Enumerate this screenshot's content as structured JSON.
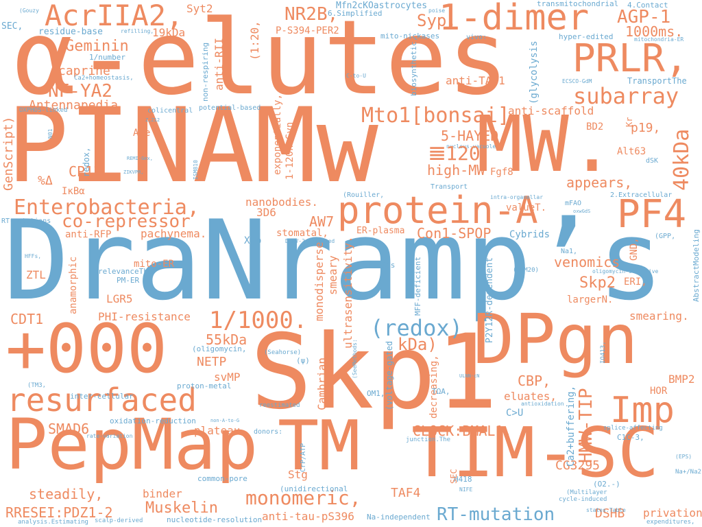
{
  "words": [
    "α-elutes",
    "PINAMw",
    "MW.",
    "DraNramp’s",
    "Skp1",
    "PepMap",
    "TM",
    "TIM-SC",
    "DPgn",
    "+000",
    "AcrIIA2,",
    "1-dimer",
    "PRLR,",
    "PF4",
    "protein-A",
    "resurfaced",
    "Imp",
    "Enterobacteria,",
    "subarray",
    "Mto1[bonsai]",
    "(redox)",
    "NR2B,",
    "Syp,",
    "AGP-1",
    "1000ms.",
    "Geminin",
    "NF-YA2",
    "caprine",
    "Antennapedia",
    "co-repressor",
    "1/1000.",
    "55kDa",
    "monomeric,",
    "Muskelin",
    "RRESEI:PDZ1-2",
    "RT-mutation",
    "CLOCK:BMAL1,",
    "Con1-SPOP",
    "venomics",
    "Skp2",
    "CDT1",
    "SMAD6",
    "kDa)",
    "high-MW",
    "5-HAYED",
    "CP13",
    "Syt2",
    "19kDa",
    "anti-TAF1",
    "appears,",
    "40kDa",
    "HMW-TIP",
    "CBP,",
    "eluates,",
    "CG3295",
    "TAF4",
    "steadily,",
    "binder",
    "anti-tau-pS396",
    "DSHB",
    "privation",
    "smearing.",
    "BMP2",
    "HOR",
    "NETP",
    "svMP",
    "plateau",
    "Stg",
    "AW7",
    "3D6",
    "nanobodies.",
    "pachynema.",
    "anti-RFP",
    "ZTL",
    "LGR5",
    "PHI-resistance",
    "mito-ER",
    "XFp",
    "stomatal,",
    "ER-plasma",
    "Cybrids",
    "anti-scaffold",
    "BD2",
    "p19,",
    "Alt63",
    "Fgf8",
    "valueT.",
    "ERI,",
    "largerN.",
    "GND,",
    "residue-base",
    "P-S394-PER2",
    "Mfn2cKOastrocytes",
    "transmitochondrial",
    "4.Contact",
    "mito-nickases",
    "hyper-edited",
    "TransportThe",
    "6.Simplified",
    "1/number",
    "GenScript)",
    "%Δ",
    "IκBα",
    "Ase",
    "anti-RII",
    "(1:20,",
    "non-respiring",
    "exponentially,",
    "1-120hαSyn",
    "redox,",
    "colicentral",
    "potential-based",
    "RT-mutations",
    "(Rouiller,",
    "Transport",
    "2.Extracellular",
    "mFAO",
    "dSK",
    "Kr",
    "(glycolysis",
    "biosynthetic,",
    "vivo:",
    "ultrasensitivity.",
    "smeary",
    "monodisperse",
    "Cambrian",
    "P2Y12R-dependent",
    "decreasing,",
    "C>U",
    "Ca2+buffering,",
    "anamorphic",
    "relevanceThe",
    "PM-ER",
    "NT-ESCs",
    "MFF-deficient",
    "(oligomycin,",
    "(Seahorse)",
    "(voltage-gated",
    "OM1,",
    "TΩA,",
    "inter-cellular",
    "proton-metal",
    "oxidation-reduction",
    "common-pore",
    "(unidirectional",
    "Na-independent",
    "nucleotide-resolution",
    "scalp-derived",
    "analysis.Estimating",
    "H418",
    "C1C-3,",
    "splice-affecting",
    "Na+/Na2",
    "(Multilayer",
    "cycle-induced",
    "expenditures,",
    "AbstractModeling",
    "(GPP,",
    "Na1,",
    "oligomycin-sensitive",
    "(TOM20)",
    "(ψ)",
    "reestimated",
    "donors:",
    "junction.The",
    "CrP/ATP",
    "(O2.-)",
    "states.Table",
    "NIFE",
    "SEC",
    "SEC,",
    "(Gouzy",
    "refilling,",
    "poise",
    "Ca2+homeostasis,",
    "OXPHOS-linked",
    "nucleus-vacuole",
    "intra-organellar",
    "DENV-2-infected",
    "rate-variation",
    "non-A-to-G",
    "(SeeMethods:",
    "(TM3,",
    "antioxidation",
    "(EPS)",
    "IO413,",
    "C-to-U",
    "ECSCO-GdM",
    "mitochondria-ER",
    "oxwGdS",
    "N01",
    "ISM810",
    "ZIKVPR,",
    "REMI-Gex,",
    "HFFs,",
    "ULNN-cN",
    "Z,Z12",
    "𝌆120"
  ]
}
